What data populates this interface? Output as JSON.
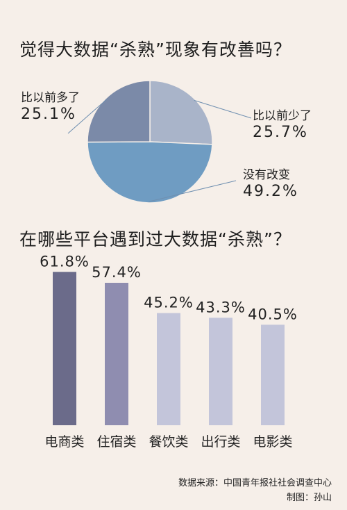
{
  "chart_data": [
    {
      "type": "pie",
      "title": "觉得大数据“杀熟”现象有改善吗？",
      "slices": [
        {
          "label": "比以前少了",
          "value": 25.7,
          "value_text": "25.7%",
          "color": "#a9b4c9"
        },
        {
          "label": "没有改变",
          "value": 49.2,
          "value_text": "49.2%",
          "color": "#6f9cc2"
        },
        {
          "label": "比以前多了",
          "value": 25.1,
          "value_text": "25.1%",
          "color": "#7b8aa8"
        }
      ]
    },
    {
      "type": "bar",
      "title": "在哪些平台遇到过大数据“杀熟”？",
      "categories": [
        "电商类",
        "住宿类",
        "餐饮类",
        "出行类",
        "电影类"
      ],
      "values": [
        61.8,
        57.4,
        45.2,
        43.3,
        40.5
      ],
      "value_labels": [
        "61.8%",
        "57.4%",
        "45.2%",
        "43.3%",
        "40.5%"
      ],
      "colors": [
        "#6b6b8a",
        "#8f8db0",
        "#c3c5da",
        "#c3c5da",
        "#c3c5da"
      ],
      "ylim": [
        0,
        70
      ]
    }
  ],
  "footer": {
    "source": "数据来源：中国青年报社社会调查中心",
    "credit": "制图：孙山"
  }
}
